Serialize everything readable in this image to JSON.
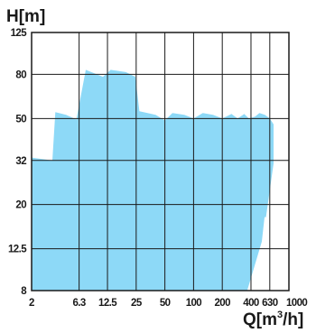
{
  "chart_data": {
    "type": "area",
    "title": "",
    "ylabel": "H[m]",
    "xlabel_main": "Q[m",
    "xlabel_sup": "3",
    "xlabel_end": "/h]",
    "x_scale": "log",
    "y_scale": "log",
    "xlim": [
      2,
      1000
    ],
    "ylim": [
      8,
      125
    ],
    "x_ticks": [
      "2",
      "6.3",
      "12.5",
      "25",
      "50",
      "100",
      "200",
      "400",
      "630",
      "1000"
    ],
    "x_tick_values": [
      2,
      6.3,
      12.5,
      25,
      50,
      100,
      200,
      400,
      630,
      1000
    ],
    "y_ticks": [
      "125",
      "80",
      "50",
      "32",
      "20",
      "12.5",
      "8"
    ],
    "y_tick_values": [
      125,
      80,
      50,
      32,
      20,
      12.5,
      8
    ],
    "x_gridlines": [
      2,
      6.3,
      12.5,
      25,
      50,
      100,
      200,
      400,
      630,
      1000
    ],
    "grid": true,
    "fill_color": "#8dd9f7",
    "series": [
      {
        "values": [
          {
            "x": 2.0,
            "y": 33
          },
          {
            "x": 3.3,
            "y": 32
          },
          {
            "x": 3.55,
            "y": 53.5
          },
          {
            "x": 4.6,
            "y": 52
          },
          {
            "x": 5.9,
            "y": 49.5
          },
          {
            "x": 7.4,
            "y": 84
          },
          {
            "x": 11.2,
            "y": 78
          },
          {
            "x": 13.5,
            "y": 84
          },
          {
            "x": 19.5,
            "y": 82
          },
          {
            "x": 24.5,
            "y": 78
          },
          {
            "x": 27,
            "y": 54
          },
          {
            "x": 40,
            "y": 52
          },
          {
            "x": 50,
            "y": 49
          },
          {
            "x": 60,
            "y": 53
          },
          {
            "x": 80,
            "y": 52
          },
          {
            "x": 100,
            "y": 50
          },
          {
            "x": 125,
            "y": 53
          },
          {
            "x": 160,
            "y": 52
          },
          {
            "x": 200,
            "y": 50
          },
          {
            "x": 250,
            "y": 52.5
          },
          {
            "x": 290,
            "y": 50
          },
          {
            "x": 340,
            "y": 52.5
          },
          {
            "x": 380,
            "y": 50
          },
          {
            "x": 440,
            "y": 51
          },
          {
            "x": 490,
            "y": 53
          },
          {
            "x": 560,
            "y": 52
          },
          {
            "x": 630,
            "y": 50
          },
          {
            "x": 690,
            "y": 47
          },
          {
            "x": 690,
            "y": 31
          },
          {
            "x": 575,
            "y": 17.5
          },
          {
            "x": 555,
            "y": 17.5
          },
          {
            "x": 520,
            "y": 13.5
          },
          {
            "x": 365,
            "y": 8
          },
          {
            "x": 2.0,
            "y": 8
          }
        ]
      }
    ]
  }
}
